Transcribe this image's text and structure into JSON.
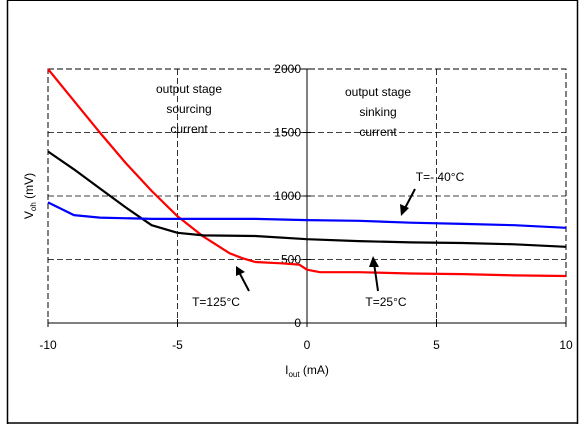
{
  "chart_data": {
    "type": "line",
    "title": "",
    "xlabel": {
      "main": "I",
      "sub": "out",
      "unit": " (mA)"
    },
    "ylabel": {
      "main": "V",
      "sub": "oh",
      "unit": " (mV)"
    },
    "xlim": [
      -10,
      10
    ],
    "ylim": [
      0,
      2000
    ],
    "xticks": [
      -10,
      -5,
      0,
      5,
      10
    ],
    "yticks": [
      0,
      500,
      1000,
      1500,
      2000
    ],
    "xtick_labels": [
      "-10",
      "-5",
      "0",
      "5",
      "10"
    ],
    "ytick_labels": [
      "0",
      "500",
      "1000",
      "1500",
      "2000"
    ],
    "grid": true,
    "series": [
      {
        "label": "T=125°C",
        "color": "#ff0000",
        "points": [
          [
            -10,
            2000
          ],
          [
            -9,
            1750
          ],
          [
            -8,
            1500
          ],
          [
            -7,
            1260
          ],
          [
            -6,
            1040
          ],
          [
            -5,
            840
          ],
          [
            -4,
            680
          ],
          [
            -3,
            550
          ],
          [
            -2.5,
            510
          ],
          [
            -2,
            480
          ],
          [
            -1,
            470
          ],
          [
            -0.3,
            460
          ],
          [
            0,
            420
          ],
          [
            0.5,
            400
          ],
          [
            2,
            400
          ],
          [
            4,
            390
          ],
          [
            6,
            385
          ],
          [
            8,
            375
          ],
          [
            10,
            370
          ]
        ]
      },
      {
        "label": "T=25°C",
        "color": "#000000",
        "points": [
          [
            -10,
            1350
          ],
          [
            -9,
            1210
          ],
          [
            -8,
            1060
          ],
          [
            -7,
            910
          ],
          [
            -6,
            770
          ],
          [
            -5,
            710
          ],
          [
            -4,
            690
          ],
          [
            -2,
            685
          ],
          [
            0,
            660
          ],
          [
            2,
            645
          ],
          [
            4,
            635
          ],
          [
            6,
            630
          ],
          [
            8,
            620
          ],
          [
            10,
            600
          ]
        ]
      },
      {
        "label": "T=- 40°C",
        "color": "#0000ff",
        "points": [
          [
            -10,
            950
          ],
          [
            -9,
            850
          ],
          [
            -8,
            830
          ],
          [
            -6,
            820
          ],
          [
            -4,
            820
          ],
          [
            -2,
            820
          ],
          [
            0,
            810
          ],
          [
            2,
            805
          ],
          [
            4,
            790
          ],
          [
            6,
            780
          ],
          [
            8,
            770
          ],
          [
            10,
            750
          ]
        ]
      }
    ],
    "annotations": {
      "sourcing": [
        "output stage",
        "sourcing",
        "current"
      ],
      "sinking": [
        "output stage",
        "sinking",
        "current"
      ],
      "t125": "T=125°C",
      "t25": "T=25°C",
      "tm40": "T=- 40°C"
    }
  }
}
